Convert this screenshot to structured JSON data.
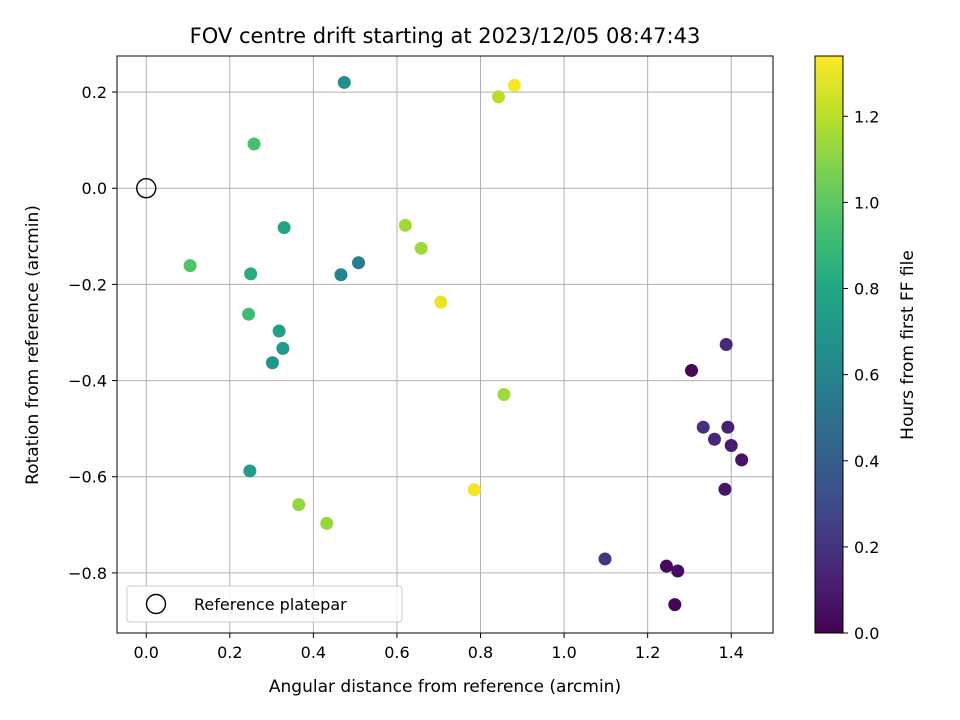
{
  "chart_data": {
    "type": "scatter",
    "title": "FOV centre drift starting at 2023/12/05 08:47:43",
    "xlabel": "Angular distance from reference (arcmin)",
    "ylabel": "Rotation from reference (arcmin)",
    "xlim": [
      -0.07,
      1.5
    ],
    "ylim": [
      -0.925,
      0.275
    ],
    "xticks": [
      0.0,
      0.2,
      0.4,
      0.6,
      0.8,
      1.0,
      1.2,
      1.4
    ],
    "xtick_labels": [
      "0.0",
      "0.2",
      "0.4",
      "0.6",
      "0.8",
      "1.0",
      "1.2",
      "1.4"
    ],
    "yticks": [
      0.2,
      0.0,
      -0.2,
      -0.4,
      -0.6,
      -0.8
    ],
    "ytick_labels": [
      "0.2",
      "0.0",
      "−0.2",
      "−0.4",
      "−0.6",
      "−0.8"
    ],
    "grid": true,
    "colormap": "viridis",
    "colorbar": {
      "label": "Hours from first FF file",
      "range": [
        0.0,
        1.34
      ],
      "ticks": [
        0.0,
        0.2,
        0.4,
        0.6,
        0.8,
        1.0,
        1.2
      ],
      "tick_labels": [
        "0.0",
        "0.2",
        "0.4",
        "0.6",
        "0.8",
        "1.0",
        "1.2"
      ]
    },
    "legend": {
      "placement": "lower-left",
      "entries": [
        {
          "label": "Reference platepar",
          "marker": "open-circle"
        }
      ]
    },
    "reference_point": {
      "x": 0.0,
      "y": 0.0
    },
    "points": [
      {
        "x": 1.265,
        "y": -0.866,
        "c": 0.02
      },
      {
        "x": 1.245,
        "y": -0.786,
        "c": 0.03
      },
      {
        "x": 1.272,
        "y": -0.796,
        "c": 0.05
      },
      {
        "x": 1.305,
        "y": -0.379,
        "c": 0.03
      },
      {
        "x": 1.425,
        "y": -0.565,
        "c": 0.07
      },
      {
        "x": 1.385,
        "y": -0.626,
        "c": 0.08
      },
      {
        "x": 1.4,
        "y": -0.535,
        "c": 0.1
      },
      {
        "x": 1.392,
        "y": -0.497,
        "c": 0.12
      },
      {
        "x": 1.36,
        "y": -0.522,
        "c": 0.15
      },
      {
        "x": 1.388,
        "y": -0.325,
        "c": 0.16
      },
      {
        "x": 1.333,
        "y": -0.497,
        "c": 0.18
      },
      {
        "x": 1.098,
        "y": -0.771,
        "c": 0.2
      },
      {
        "x": 0.508,
        "y": -0.155,
        "c": 0.57
      },
      {
        "x": 0.466,
        "y": -0.18,
        "c": 0.6
      },
      {
        "x": 0.474,
        "y": 0.22,
        "c": 0.66
      },
      {
        "x": 0.302,
        "y": -0.363,
        "c": 0.7
      },
      {
        "x": 0.327,
        "y": -0.333,
        "c": 0.72
      },
      {
        "x": 0.248,
        "y": -0.588,
        "c": 0.74
      },
      {
        "x": 0.318,
        "y": -0.297,
        "c": 0.76
      },
      {
        "x": 0.33,
        "y": -0.082,
        "c": 0.78
      },
      {
        "x": 0.25,
        "y": -0.178,
        "c": 0.82
      },
      {
        "x": 0.245,
        "y": -0.262,
        "c": 0.92
      },
      {
        "x": 0.258,
        "y": 0.092,
        "c": 0.94
      },
      {
        "x": 0.105,
        "y": -0.161,
        "c": 0.97
      },
      {
        "x": 0.365,
        "y": -0.658,
        "c": 1.13
      },
      {
        "x": 0.432,
        "y": -0.697,
        "c": 1.13
      },
      {
        "x": 0.62,
        "y": -0.077,
        "c": 1.15
      },
      {
        "x": 0.658,
        "y": -0.125,
        "c": 1.15
      },
      {
        "x": 0.856,
        "y": -0.429,
        "c": 1.15
      },
      {
        "x": 0.843,
        "y": 0.19,
        "c": 1.2
      },
      {
        "x": 0.705,
        "y": -0.237,
        "c": 1.3
      },
      {
        "x": 0.785,
        "y": -0.627,
        "c": 1.32
      },
      {
        "x": 0.881,
        "y": 0.214,
        "c": 1.33
      }
    ]
  }
}
